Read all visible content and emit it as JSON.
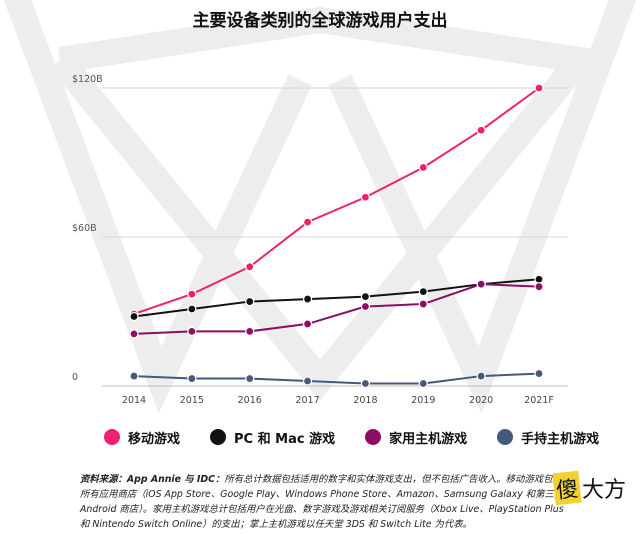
{
  "title": "主要设备类别的全球游戏用户支出",
  "chart_data": {
    "type": "line",
    "title": "主要设备类别的全球游戏用户支出",
    "x": [
      "2014",
      "2015",
      "2016",
      "2017",
      "2018",
      "2019",
      "2020",
      "2021F"
    ],
    "ylim": [
      0,
      120
    ],
    "yticks": [
      {
        "value": 0,
        "label": "0"
      },
      {
        "value": 60,
        "label": "$60B"
      },
      {
        "value": 120,
        "label": "$120B"
      }
    ],
    "grid": true,
    "legend": "bottom",
    "series": [
      {
        "name": "移动游戏",
        "color": "#f0206f",
        "values": [
          29,
          37,
          48,
          66,
          76,
          88,
          103,
          120
        ]
      },
      {
        "name": "PC 和 Mac 游戏",
        "color": "#111111",
        "values": [
          28,
          31,
          34,
          35,
          36,
          38,
          41,
          43
        ]
      },
      {
        "name": "家用主机游戏",
        "color": "#8b0e64",
        "values": [
          21,
          22,
          22,
          25,
          32,
          33,
          41,
          40
        ]
      },
      {
        "name": "手持主机游戏",
        "color": "#45597a",
        "values": [
          4,
          3,
          3,
          2,
          1,
          1,
          4,
          5
        ]
      }
    ]
  },
  "source": {
    "label": "资料来源：App Annie 与 IDC：",
    "text": "所有总计数据包括适用的数字和实体游戏支出，但不包括广告收入。移动游戏包括所有应用商店（iOS App Store、Google Play、Windows Phone Store、Amazon、Samsung Galaxy 和第三方 Android 商店）。家用主机游戏总计包括用户在光盘、数字游戏及游戏相关订阅服务（Xbox Live、PlayStation Plus 和 Nintendo Switch Online）的支出；掌上主机游戏以任天堂 3DS 和 Switch Lite 为代表。"
  },
  "watermark": {
    "highlight": "傻",
    "rest": "大方"
  }
}
